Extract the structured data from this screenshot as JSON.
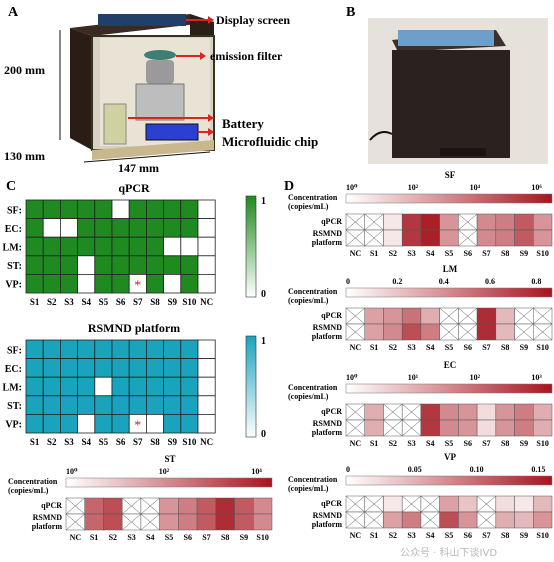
{
  "panelA": {
    "letter": "A",
    "dims": {
      "height": "200 mm",
      "depth": "130 mm",
      "width": "147 mm"
    },
    "callouts": [
      "Display screen",
      "emission filter",
      "Battery",
      "Microfluidic chip"
    ]
  },
  "panelB": {
    "letter": "B"
  },
  "panelC": {
    "letter": "C",
    "samples": [
      "S1",
      "S2",
      "S3",
      "S4",
      "S5",
      "S6",
      "S7",
      "S8",
      "S9",
      "S10",
      "NC"
    ],
    "targets": [
      "SF",
      "EC",
      "LM",
      "ST",
      "VP"
    ],
    "scale_max": "1",
    "scale_min": "0",
    "qpcr": {
      "title": "qPCR",
      "color": "#1f8a1f",
      "grid": [
        [
          1,
          1,
          1,
          1,
          1,
          0,
          1,
          1,
          1,
          1,
          0
        ],
        [
          1,
          0,
          0,
          1,
          1,
          1,
          1,
          1,
          1,
          1,
          0
        ],
        [
          1,
          1,
          1,
          1,
          1,
          1,
          1,
          1,
          0,
          0,
          0
        ],
        [
          1,
          1,
          1,
          0,
          1,
          1,
          1,
          1,
          1,
          1,
          0
        ],
        [
          1,
          1,
          1,
          0,
          1,
          1,
          0,
          1,
          0,
          1,
          0
        ]
      ],
      "star": {
        "target": "VP",
        "sample": "S7",
        "text": "*"
      }
    },
    "rsmnd": {
      "title": "RSMND platform",
      "color": "#1aa3bd",
      "grid": [
        [
          1,
          1,
          1,
          1,
          1,
          1,
          1,
          1,
          1,
          1,
          0
        ],
        [
          1,
          1,
          1,
          1,
          1,
          1,
          1,
          1,
          1,
          1,
          0
        ],
        [
          1,
          1,
          1,
          1,
          0,
          1,
          1,
          1,
          1,
          1,
          0
        ],
        [
          1,
          1,
          1,
          1,
          1,
          1,
          1,
          1,
          1,
          1,
          0
        ],
        [
          1,
          1,
          1,
          0,
          1,
          1,
          0,
          0,
          1,
          1,
          0
        ]
      ],
      "star": {
        "target": "VP",
        "sample": "S7",
        "text": "*"
      }
    }
  },
  "panelD": {
    "letter": "D",
    "conc_label_1": "Concentration",
    "conc_label_2": "(copies/mL)",
    "row_labels": [
      "qPCR",
      "RSMND",
      "platform"
    ],
    "strips": [
      {
        "title": "SF",
        "ticks": [
          "10⁰",
          "10²",
          "10⁴",
          "10⁶"
        ],
        "samples": [
          "NC",
          "S1",
          "S2",
          "S3",
          "S4",
          "S5",
          "S6",
          "S7",
          "S8",
          "S9",
          "S10"
        ],
        "qpcr": [
          null,
          null,
          0.1,
          0.85,
          0.95,
          0.45,
          null,
          0.5,
          0.55,
          0.7,
          0.45
        ],
        "rsmnd": [
          null,
          null,
          0.1,
          0.85,
          0.95,
          0.45,
          null,
          0.5,
          0.55,
          0.7,
          0.45
        ]
      },
      {
        "title": "LM",
        "ticks": [
          "0",
          "0.2",
          "0.4",
          "0.6",
          "0.8"
        ],
        "samples": [
          "NC",
          "S1",
          "S2",
          "S3",
          "S4",
          "S5",
          "S6",
          "S7",
          "S8",
          "S9",
          "S10"
        ],
        "qpcr": [
          null,
          0.4,
          0.45,
          0.6,
          0.35,
          null,
          null,
          0.9,
          0.3,
          null,
          null
        ],
        "rsmnd": [
          null,
          0.4,
          0.5,
          0.75,
          0.55,
          null,
          null,
          0.9,
          0.3,
          null,
          null
        ]
      },
      {
        "title": "EC",
        "ticks": [
          "10⁰",
          "10¹",
          "10²",
          "10³"
        ],
        "samples": [
          "NC",
          "S1",
          "S2",
          "S3",
          "S4",
          "S5",
          "S6",
          "S7",
          "S8",
          "S9",
          "S10"
        ],
        "qpcr": [
          null,
          0.35,
          null,
          null,
          0.85,
          0.5,
          0.45,
          0.15,
          0.45,
          0.55,
          0.35
        ],
        "rsmnd": [
          null,
          0.35,
          null,
          null,
          0.85,
          0.5,
          0.45,
          0.15,
          0.45,
          0.55,
          0.35
        ]
      },
      {
        "title": "VP",
        "ticks": [
          "0",
          "0.05",
          "0.10",
          "0.15"
        ],
        "samples": [
          "NC",
          "S1",
          "S2",
          "S3",
          "S4",
          "S5",
          "S6",
          "S7",
          "S8",
          "S9",
          "S10"
        ],
        "qpcr": [
          null,
          null,
          0.1,
          null,
          null,
          0.4,
          0.25,
          null,
          0.15,
          0.1,
          0.3
        ],
        "rsmnd": [
          null,
          null,
          0.4,
          0.55,
          null,
          0.75,
          0.45,
          null,
          0.35,
          0.3,
          0.45
        ]
      }
    ],
    "st_strip": {
      "title": "ST",
      "ticks": [
        "10⁰",
        "10²",
        "10⁴"
      ],
      "samples": [
        "NC",
        "S1",
        "S2",
        "S3",
        "S4",
        "S5",
        "S6",
        "S7",
        "S8",
        "S9",
        "S10"
      ],
      "qpcr": [
        null,
        0.65,
        0.75,
        null,
        null,
        0.45,
        0.55,
        0.7,
        0.9,
        0.7,
        0.5
      ],
      "rsmnd": [
        null,
        0.65,
        0.75,
        null,
        null,
        0.45,
        0.55,
        0.7,
        0.9,
        0.7,
        0.5
      ]
    }
  },
  "watermark": "公众号 · 科山下谈IVD"
}
